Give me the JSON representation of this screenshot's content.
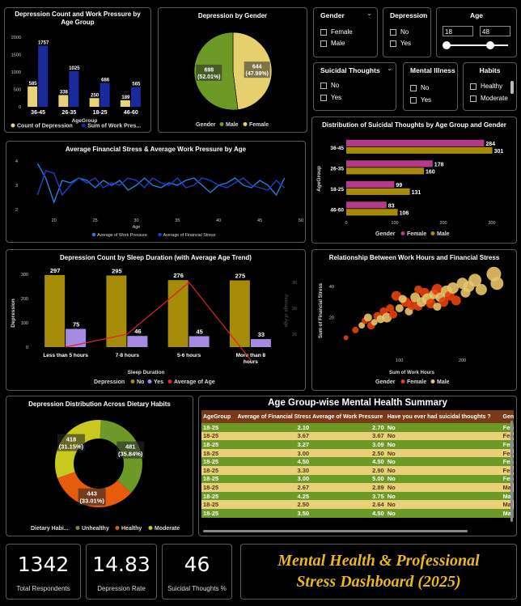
{
  "chart_age_group": {
    "title": "Depression Count and Work Pressure by Age Group",
    "type": "bar",
    "xlabel": "AgeGroup",
    "categories": [
      "36-45",
      "26-35",
      "18-25",
      "46-60"
    ],
    "series": [
      {
        "name": "Count of Depression",
        "color": "#e8d27a",
        "values": [
          585,
          338,
          250,
          189
        ]
      },
      {
        "name": "Sum of Work Pres...",
        "color": "#1a2a9c",
        "values": [
          1757,
          1025,
          686,
          565
        ]
      }
    ],
    "ylim": [
      0,
      2000
    ],
    "yticks": [
      "2000",
      "1500",
      "1000",
      "500",
      "0"
    ]
  },
  "chart_gender": {
    "title": "Depression by Gender",
    "type": "pie",
    "legend_title": "Gender",
    "slices": [
      {
        "name": "Female",
        "value": 644,
        "label": "644",
        "pct": "(47.99%)",
        "color": "#e6d06e"
      },
      {
        "name": "Male",
        "value": 698,
        "label": "698",
        "pct": "(52.01%)",
        "color": "#6d9a26"
      }
    ]
  },
  "slicers": {
    "gender": {
      "title": "Gender",
      "options": [
        "Female",
        "Male"
      ]
    },
    "depression": {
      "title": "Depression",
      "options": [
        "No",
        "Yes"
      ]
    },
    "age": {
      "title": "Age",
      "min": "18",
      "max": "48",
      "range": [
        18,
        48
      ],
      "bounds": [
        18,
        60
      ]
    },
    "suicidal": {
      "title": "Suicidal Thoughts",
      "options": [
        "No",
        "Yes"
      ]
    },
    "mental": {
      "title": "Mental Illness",
      "options": [
        "No",
        "Yes"
      ]
    },
    "habits": {
      "title": "Habits",
      "options": [
        "Healthy",
        "Moderate"
      ]
    }
  },
  "chart_stress_line": {
    "title": "Average Financial Stress & Average Work Pressure by Age",
    "type": "line",
    "xlabel": "Age",
    "xticks": [
      "20",
      "25",
      "30",
      "35",
      "40",
      "45",
      "50"
    ],
    "yticks": [
      "4",
      "3",
      "2"
    ],
    "xlim": [
      16,
      50
    ],
    "ylim": [
      1.8,
      4.2
    ],
    "x": [
      18,
      19,
      20,
      21,
      22,
      23,
      24,
      25,
      26,
      27,
      28,
      29,
      30,
      31,
      32,
      33,
      34,
      35,
      36,
      37,
      38,
      39,
      40,
      41,
      42,
      43,
      44,
      45,
      46,
      47,
      48
    ],
    "series": [
      {
        "name": "Average of Work Pressure",
        "color": "#2a7de0",
        "values": [
          3.9,
          3.3,
          2.3,
          3.2,
          3.1,
          3.3,
          3.2,
          2.9,
          3.2,
          3.0,
          3.2,
          2.8,
          3.0,
          3.3,
          3.0,
          2.9,
          3.1,
          3.0,
          3.2,
          3.3,
          3.0,
          2.7,
          3.0,
          3.1,
          3.3,
          3.0,
          2.9,
          3.2,
          3.0,
          2.6,
          3.3
        ]
      },
      {
        "name": "Average of Financial Stress",
        "color": "#1a40c8",
        "values": [
          2.6,
          3.6,
          3.5,
          2.6,
          3.0,
          3.3,
          3.1,
          3.3,
          2.9,
          3.1,
          3.0,
          3.3,
          3.2,
          2.9,
          3.3,
          3.1,
          3.0,
          3.3,
          2.9,
          3.0,
          3.3,
          3.2,
          3.0,
          2.9,
          3.1,
          3.3,
          3.0,
          2.9,
          2.8,
          3.2,
          2.9
        ]
      }
    ]
  },
  "chart_suicidal": {
    "title": "Distribution of Suicidal Thoughts by Age Group and Gender",
    "type": "bar",
    "ylabel": "AgeGroup",
    "legend_title": "Gender",
    "categories": [
      "36-45",
      "26-35",
      "18-25",
      "46-60"
    ],
    "series": [
      {
        "name": "Female",
        "color": "#b53a8a",
        "values": [
          284,
          178,
          99,
          83
        ]
      },
      {
        "name": "Male",
        "color": "#a58b08",
        "values": [
          301,
          160,
          131,
          106
        ]
      }
    ],
    "xlim": [
      0,
      330
    ],
    "xticks": [
      "0",
      "100",
      "200",
      "300"
    ]
  },
  "chart_sleep": {
    "title": "Depression Count by Sleep Duration (with Average Age Trend)",
    "type": "bar",
    "xlabel": "Sleep Duration",
    "ylabel": "Depression",
    "y2label": "Average of Age",
    "legend_title": "Depression",
    "categories": [
      "Less than 5 hours",
      "7-8 hours",
      "5-6 hours",
      "More than 8 hours"
    ],
    "categories_line1": [
      "Less than 5 hours",
      "7-8 hours",
      "5-6 hours",
      "More than 8"
    ],
    "categories_line2": [
      "",
      "",
      "",
      "hours"
    ],
    "series": [
      {
        "name": "No",
        "color": "#a58b08",
        "values": [
          297,
          295,
          276,
          275
        ]
      },
      {
        "name": "Yes",
        "color": "#a48ae0",
        "values": [
          75,
          46,
          45,
          33
        ]
      }
    ],
    "line": {
      "name": "Average of Age",
      "color": "#e0202a",
      "values": [
        25.0,
        26.0,
        30.0,
        24.0
      ]
    },
    "ylim": [
      0,
      320
    ],
    "yticks": [
      "300",
      "200",
      "100",
      "0"
    ],
    "y2ticks": [
      "30",
      "28",
      "26"
    ]
  },
  "chart_scatter": {
    "title": "Relationship Between Work Hours and Financial Stress",
    "type": "scatter",
    "xlabel": "Sum of Work Hours",
    "ylabel": "Sum of Financial Stress",
    "legend_title": "Gender",
    "legend": [
      {
        "name": "Female",
        "color": "#e8400c"
      },
      {
        "name": "Male",
        "color": "#e8c46a"
      }
    ],
    "xticks": [
      "100",
      "200"
    ],
    "yticks": [
      "40",
      "20"
    ],
    "xlim": [
      0,
      270
    ],
    "ylim": [
      0,
      52
    ],
    "points": [
      {
        "x": 15,
        "y": 7,
        "r": 3,
        "g": "F"
      },
      {
        "x": 30,
        "y": 12,
        "r": 4,
        "g": "F"
      },
      {
        "x": 40,
        "y": 15,
        "r": 4,
        "g": "M"
      },
      {
        "x": 45,
        "y": 18,
        "r": 4,
        "g": "F"
      },
      {
        "x": 50,
        "y": 20,
        "r": 5,
        "g": "M"
      },
      {
        "x": 55,
        "y": 15,
        "r": 5,
        "g": "F"
      },
      {
        "x": 60,
        "y": 17,
        "r": 4,
        "g": "M"
      },
      {
        "x": 65,
        "y": 21,
        "r": 5,
        "g": "F"
      },
      {
        "x": 70,
        "y": 19,
        "r": 5,
        "g": "M"
      },
      {
        "x": 75,
        "y": 24,
        "r": 5,
        "g": "F"
      },
      {
        "x": 80,
        "y": 20,
        "r": 6,
        "g": "M"
      },
      {
        "x": 90,
        "y": 22,
        "r": 5,
        "g": "F"
      },
      {
        "x": 95,
        "y": 34,
        "r": 6,
        "g": "F"
      },
      {
        "x": 100,
        "y": 26,
        "r": 5,
        "g": "M"
      },
      {
        "x": 110,
        "y": 30,
        "r": 6,
        "g": "F"
      },
      {
        "x": 115,
        "y": 24,
        "r": 5,
        "g": "M"
      },
      {
        "x": 120,
        "y": 28,
        "r": 6,
        "g": "F"
      },
      {
        "x": 125,
        "y": 33,
        "r": 6,
        "g": "M"
      },
      {
        "x": 130,
        "y": 27,
        "r": 5,
        "g": "F"
      },
      {
        "x": 135,
        "y": 30,
        "r": 6,
        "g": "M"
      },
      {
        "x": 140,
        "y": 36,
        "r": 6,
        "g": "F"
      },
      {
        "x": 145,
        "y": 32,
        "r": 7,
        "g": "M"
      },
      {
        "x": 150,
        "y": 29,
        "r": 6,
        "g": "F"
      },
      {
        "x": 155,
        "y": 35,
        "r": 6,
        "g": "M"
      },
      {
        "x": 160,
        "y": 38,
        "r": 7,
        "g": "F"
      },
      {
        "x": 165,
        "y": 33,
        "r": 6,
        "g": "M"
      },
      {
        "x": 170,
        "y": 30,
        "r": 6,
        "g": "F"
      },
      {
        "x": 175,
        "y": 37,
        "r": 7,
        "g": "M"
      },
      {
        "x": 180,
        "y": 34,
        "r": 6,
        "g": "F"
      },
      {
        "x": 185,
        "y": 39,
        "r": 7,
        "g": "M"
      },
      {
        "x": 190,
        "y": 31,
        "r": 6,
        "g": "F"
      },
      {
        "x": 200,
        "y": 42,
        "r": 7,
        "g": "M"
      },
      {
        "x": 205,
        "y": 36,
        "r": 6,
        "g": "M"
      },
      {
        "x": 210,
        "y": 40,
        "r": 7,
        "g": "M"
      },
      {
        "x": 220,
        "y": 44,
        "r": 8,
        "g": "M"
      },
      {
        "x": 230,
        "y": 38,
        "r": 7,
        "g": "M"
      },
      {
        "x": 250,
        "y": 48,
        "r": 9,
        "g": "M"
      },
      {
        "x": 255,
        "y": 42,
        "r": 8,
        "g": "M"
      },
      {
        "x": 130,
        "y": 38,
        "r": 5,
        "g": "F"
      },
      {
        "x": 105,
        "y": 32,
        "r": 5,
        "g": "M"
      },
      {
        "x": 85,
        "y": 26,
        "r": 5,
        "g": "F"
      },
      {
        "x": 160,
        "y": 27,
        "r": 5,
        "g": "M"
      }
    ]
  },
  "chart_diet": {
    "title": "Depression Distribution Across Dietary Habits",
    "type": "pie",
    "legend_title": "Dietary Habi...",
    "slices": [
      {
        "name": "Unhealthy",
        "value": 481,
        "label": "481",
        "pct": "(35.84%)",
        "color": "#6d9a26"
      },
      {
        "name": "Healthy",
        "value": 443,
        "label": "443",
        "pct": "(33.01%)",
        "color": "#e85a0c"
      },
      {
        "name": "Moderate",
        "value": 418,
        "label": "418",
        "pct": "(31.15%)",
        "color": "#c8c81e"
      }
    ]
  },
  "summary_table": {
    "title": "Age Group-wise Mental Health Summary",
    "headers": [
      "AgeGroup",
      "Average of Financial Stress",
      "Average of Work Pressure",
      "Have you ever had suicidal thoughts ?",
      "Gen"
    ],
    "rows": [
      [
        "18-25",
        "2.10",
        "2.70",
        "No",
        "Fen"
      ],
      [
        "18-25",
        "3.67",
        "3.67",
        "No",
        "Fen"
      ],
      [
        "18-25",
        "3.27",
        "3.09",
        "No",
        "Fen"
      ],
      [
        "18-25",
        "3.00",
        "2.50",
        "No",
        "Fen"
      ],
      [
        "18-25",
        "4.50",
        "4.50",
        "No",
        "Fen"
      ],
      [
        "18-25",
        "3.30",
        "2.90",
        "No",
        "Fen"
      ],
      [
        "18-25",
        "3.00",
        "5.00",
        "No",
        "Fen"
      ],
      [
        "18-25",
        "2.67",
        "2.89",
        "No",
        "Ma"
      ],
      [
        "18-25",
        "4.25",
        "3.75",
        "No",
        "Ma"
      ],
      [
        "18-25",
        "2.50",
        "2.64",
        "No",
        "Ma"
      ],
      [
        "18-25",
        "3.50",
        "4.50",
        "No",
        "Ma"
      ]
    ]
  },
  "kpis": [
    {
      "value": "1342",
      "label": "Total Respondents"
    },
    {
      "value": "14.83",
      "label": "Depression Rate"
    },
    {
      "value": "46",
      "label": "Suicidal Thoughts %"
    }
  ],
  "banner": {
    "line1": "Mental Health & Professional",
    "line2": "Stress Dashboard (2025)"
  }
}
